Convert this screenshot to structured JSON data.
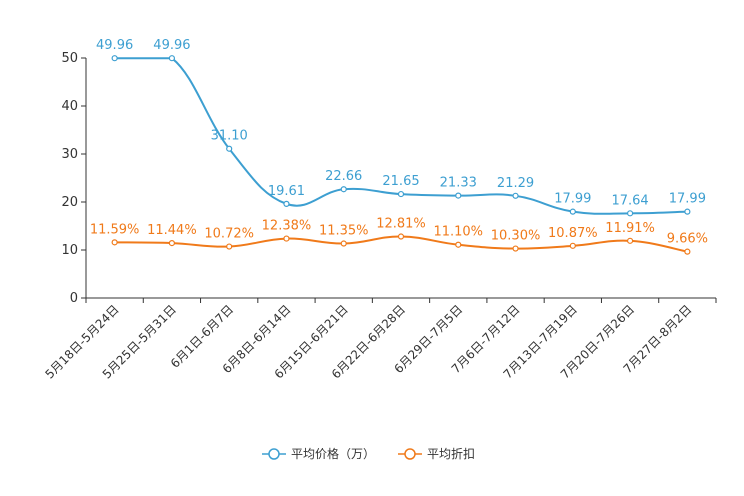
{
  "chart_data": {
    "type": "line",
    "title": "",
    "xlabel": "",
    "ylabel": "",
    "ylim": [
      0,
      50
    ],
    "yticks": [
      "0",
      "10",
      "20",
      "30",
      "40",
      "50"
    ],
    "categories": [
      "5月18日-5月24日",
      "5月25日-5月31日",
      "6月1日-6月7日",
      "6月8日-6月14日",
      "6月15日-6月21日",
      "6月22日-6月28日",
      "6月29日-7月5日",
      "7月6日-7月12日",
      "7月13日-7月19日",
      "7月20日-7月26日",
      "7月27日-8月2日"
    ],
    "series": [
      {
        "name": "平均价格（万）",
        "color": "#3d9fd1",
        "values": [
          49.96,
          49.96,
          31.1,
          19.61,
          22.66,
          21.65,
          21.33,
          21.29,
          17.99,
          17.64,
          17.99
        ],
        "labels": [
          "49.96",
          "49.96",
          "31.10",
          "19.61",
          "22.66",
          "21.65",
          "21.33",
          "21.29",
          "17.99",
          "17.64",
          "17.99"
        ]
      },
      {
        "name": "平均折扣",
        "color": "#f07a1a",
        "values": [
          11.59,
          11.44,
          10.72,
          12.38,
          11.35,
          12.81,
          11.1,
          10.3,
          10.87,
          11.91,
          9.66
        ],
        "labels": [
          "11.59%",
          "11.44%",
          "10.72%",
          "12.38%",
          "11.35%",
          "12.81%",
          "11.10%",
          "10.30%",
          "10.87%",
          "11.91%",
          "9.66%"
        ]
      }
    ],
    "legend": "bottom-center"
  }
}
